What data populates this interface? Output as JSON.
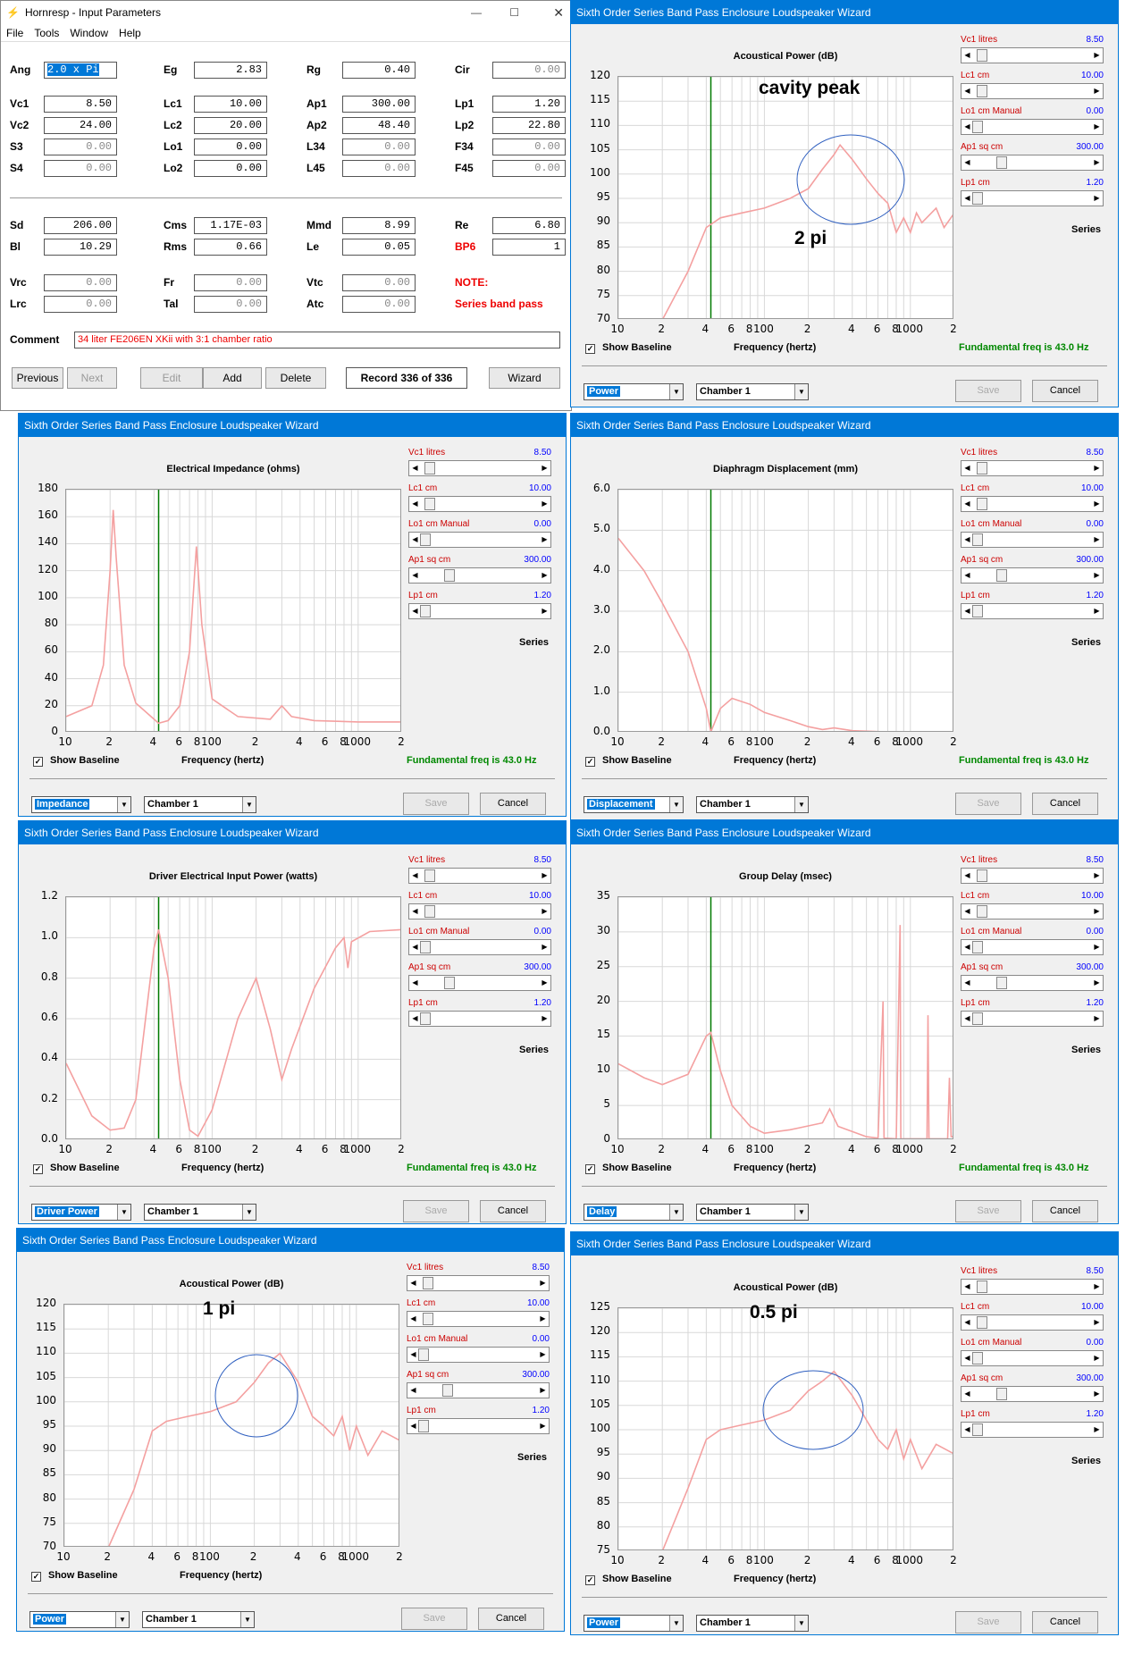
{
  "hornresp": {
    "title": "Hornresp - Input Parameters",
    "menu": [
      "File",
      "Tools",
      "Window",
      "Help"
    ],
    "params_row1": [
      {
        "label": "Ang",
        "value": "2.0 x Pi",
        "selected": true
      },
      {
        "label": "Eg",
        "value": "2.83"
      },
      {
        "label": "Rg",
        "value": "0.40"
      },
      {
        "label": "Cir",
        "value": "0.00",
        "dim": true
      }
    ],
    "params_row2": [
      {
        "label": "Vc1",
        "value": "8.50"
      },
      {
        "label": "Lc1",
        "value": "10.00"
      },
      {
        "label": "Ap1",
        "value": "300.00"
      },
      {
        "label": "Lp1",
        "value": "1.20"
      }
    ],
    "params_row3": [
      {
        "label": "Vc2",
        "value": "24.00"
      },
      {
        "label": "Lc2",
        "value": "20.00"
      },
      {
        "label": "Ap2",
        "value": "48.40"
      },
      {
        "label": "Lp2",
        "value": "22.80"
      }
    ],
    "params_row4": [
      {
        "label": "S3",
        "value": "0.00",
        "dim": true
      },
      {
        "label": "Lo1",
        "value": "0.00"
      },
      {
        "label": "L34",
        "value": "0.00",
        "dim": true
      },
      {
        "label": "F34",
        "value": "0.00",
        "dim": true
      }
    ],
    "params_row5": [
      {
        "label": "S4",
        "value": "0.00",
        "dim": true
      },
      {
        "label": "Lo2",
        "value": "0.00"
      },
      {
        "label": "L45",
        "value": "0.00",
        "dim": true
      },
      {
        "label": "F45",
        "value": "0.00",
        "dim": true
      }
    ],
    "params_row6": [
      {
        "label": "Sd",
        "value": "206.00"
      },
      {
        "label": "Cms",
        "value": "1.17E-03"
      },
      {
        "label": "Mmd",
        "value": "8.99"
      },
      {
        "label": "Re",
        "value": "6.80"
      }
    ],
    "params_row7": [
      {
        "label": "Bl",
        "value": "10.29"
      },
      {
        "label": "Rms",
        "value": "0.66"
      },
      {
        "label": "Le",
        "value": "0.05"
      },
      {
        "label": "BP6",
        "value": "1",
        "red": true
      }
    ],
    "params_row8": [
      {
        "label": "Vrc",
        "value": "0.00",
        "dim": true
      },
      {
        "label": "Fr",
        "value": "0.00",
        "dim": true
      },
      {
        "label": "Vtc",
        "value": "0.00",
        "dim": true
      }
    ],
    "params_row9": [
      {
        "label": "Lrc",
        "value": "0.00",
        "dim": true
      },
      {
        "label": "Tal",
        "value": "0.00",
        "dim": true
      },
      {
        "label": "Atc",
        "value": "0.00",
        "dim": true
      }
    ],
    "note_label": "NOTE:",
    "note_text": "Series band pass",
    "comment_label": "Comment",
    "comment_value": "34 liter FE206EN XKii with 3:1 chamber ratio",
    "buttons": {
      "previous": "Previous",
      "next": "Next",
      "edit": "Edit",
      "add": "Add",
      "delete": "Delete",
      "record": "Record 336 of 336",
      "wizard": "Wizard"
    }
  },
  "wizard_common": {
    "title": "Sixth Order Series Band Pass Enclosure Loudspeaker Wizard",
    "sliders": [
      {
        "label": "Vc1  litres",
        "value": "8.50",
        "pos": 0.04
      },
      {
        "label": "Lc1  cm",
        "value": "10.00",
        "pos": 0.04
      },
      {
        "label": "Lo1  cm  Manual",
        "value": "0.00",
        "pos": 0.0
      },
      {
        "label": "Ap1  sq cm",
        "value": "300.00",
        "pos": 0.22
      },
      {
        "label": "Lp1  cm",
        "value": "1.20",
        "pos": 0.0
      }
    ],
    "series": "Series",
    "show_baseline": "Show Baseline",
    "freq_label": "Frequency (hertz)",
    "fundamental": "Fundamental freq is 43.0 Hz",
    "chamber": "Chamber 1",
    "save": "Save",
    "cancel": "Cancel",
    "x_ticks": [
      "10",
      "2",
      "4",
      "6",
      "8",
      "100",
      "2",
      "4",
      "6",
      "8",
      "1000",
      "2"
    ],
    "colors": {
      "curve": "#f4a0a0",
      "marker": "#007a00",
      "circle": "#3060c0",
      "accent": "#0078d7"
    }
  },
  "wizards": [
    {
      "id": "w1",
      "mode": "Power",
      "chart_data": {
        "type": "line",
        "title": "Acoustical Power (dB)",
        "xlabel": "Frequency (hertz)",
        "ylim": [
          70,
          120
        ],
        "xscale": "log",
        "xlim": [
          10,
          20000
        ],
        "y_ticks": [
          "120",
          "115",
          "110",
          "105",
          "100",
          "95",
          "90",
          "85",
          "80",
          "75",
          "70"
        ],
        "marker_hz": 43,
        "points": [
          [
            20,
            70
          ],
          [
            30,
            80
          ],
          [
            40,
            89
          ],
          [
            50,
            91
          ],
          [
            70,
            92
          ],
          [
            100,
            93
          ],
          [
            150,
            95
          ],
          [
            200,
            97
          ],
          [
            250,
            101
          ],
          [
            300,
            104
          ],
          [
            330,
            106
          ],
          [
            400,
            103
          ],
          [
            500,
            99
          ],
          [
            600,
            96
          ],
          [
            700,
            94
          ],
          [
            800,
            88
          ],
          [
            900,
            91
          ],
          [
            1000,
            88
          ],
          [
            1100,
            92
          ],
          [
            1200,
            90
          ],
          [
            1500,
            93
          ],
          [
            1700,
            89
          ],
          [
            2000,
            92
          ]
        ],
        "annotations": [
          {
            "text": "cavity peak"
          },
          {
            "text": "2 pi"
          }
        ]
      }
    },
    {
      "id": "w2",
      "mode": "Impedance",
      "chart_data": {
        "type": "line",
        "title": "Electrical Impedance (ohms)",
        "xlabel": "Frequency (hertz)",
        "ylim": [
          0,
          180
        ],
        "xscale": "log",
        "xlim": [
          10,
          20000
        ],
        "y_ticks": [
          "180",
          "160",
          "140",
          "120",
          "100",
          "80",
          "60",
          "40",
          "20",
          "0"
        ],
        "marker_hz": 43,
        "points": [
          [
            10,
            12
          ],
          [
            15,
            20
          ],
          [
            18,
            50
          ],
          [
            20,
            120
          ],
          [
            21,
            165
          ],
          [
            22,
            130
          ],
          [
            25,
            50
          ],
          [
            30,
            22
          ],
          [
            40,
            10
          ],
          [
            43,
            7
          ],
          [
            50,
            9
          ],
          [
            60,
            20
          ],
          [
            70,
            60
          ],
          [
            78,
            138
          ],
          [
            85,
            80
          ],
          [
            100,
            25
          ],
          [
            150,
            12
          ],
          [
            250,
            10
          ],
          [
            300,
            20
          ],
          [
            350,
            12
          ],
          [
            500,
            9
          ],
          [
            1000,
            8
          ],
          [
            2000,
            8
          ]
        ]
      }
    },
    {
      "id": "w3",
      "mode": "Displacement",
      "chart_data": {
        "type": "line",
        "title": "Diaphragm Displacement (mm)",
        "xlabel": "Frequency (hertz)",
        "ylim": [
          0,
          6
        ],
        "xscale": "log",
        "xlim": [
          10,
          20000
        ],
        "y_ticks": [
          "6.0",
          "5.0",
          "4.0",
          "3.0",
          "2.0",
          "1.0",
          "0.0"
        ],
        "marker_hz": 43,
        "points": [
          [
            10,
            4.8
          ],
          [
            15,
            4.0
          ],
          [
            20,
            3.2
          ],
          [
            30,
            2.0
          ],
          [
            40,
            0.6
          ],
          [
            43,
            0.02
          ],
          [
            50,
            0.6
          ],
          [
            60,
            0.85
          ],
          [
            80,
            0.7
          ],
          [
            100,
            0.5
          ],
          [
            150,
            0.3
          ],
          [
            200,
            0.15
          ],
          [
            250,
            0.08
          ],
          [
            300,
            0.12
          ],
          [
            400,
            0.05
          ],
          [
            700,
            0.02
          ],
          [
            1000,
            0.01
          ],
          [
            2000,
            0.0
          ]
        ]
      }
    },
    {
      "id": "w4",
      "mode": "Driver Power",
      "chart_data": {
        "type": "line",
        "title": "Driver Electrical Input Power (watts)",
        "xlabel": "Frequency (hertz)",
        "ylim": [
          0,
          1.2
        ],
        "xscale": "log",
        "xlim": [
          10,
          20000
        ],
        "y_ticks": [
          "1.2",
          "1.0",
          "0.8",
          "0.6",
          "0.4",
          "0.2",
          "0.0"
        ],
        "marker_hz": 43,
        "points": [
          [
            10,
            0.38
          ],
          [
            15,
            0.12
          ],
          [
            20,
            0.05
          ],
          [
            25,
            0.06
          ],
          [
            30,
            0.2
          ],
          [
            35,
            0.6
          ],
          [
            40,
            0.95
          ],
          [
            43,
            1.04
          ],
          [
            50,
            0.8
          ],
          [
            60,
            0.3
          ],
          [
            70,
            0.05
          ],
          [
            80,
            0.02
          ],
          [
            100,
            0.15
          ],
          [
            150,
            0.6
          ],
          [
            200,
            0.8
          ],
          [
            250,
            0.55
          ],
          [
            300,
            0.3
          ],
          [
            350,
            0.45
          ],
          [
            500,
            0.75
          ],
          [
            700,
            0.95
          ],
          [
            800,
            1.0
          ],
          [
            850,
            0.85
          ],
          [
            900,
            0.98
          ],
          [
            1200,
            1.03
          ],
          [
            2000,
            1.04
          ]
        ]
      }
    },
    {
      "id": "w5",
      "mode": "Delay",
      "chart_data": {
        "type": "line",
        "title": "Group Delay (msec)",
        "xlabel": "Frequency (hertz)",
        "ylim": [
          0,
          35
        ],
        "xscale": "log",
        "xlim": [
          10,
          20000
        ],
        "y_ticks": [
          "35",
          "30",
          "25",
          "20",
          "15",
          "10",
          "5",
          "0"
        ],
        "marker_hz": 43,
        "points": [
          [
            10,
            11
          ],
          [
            15,
            9
          ],
          [
            20,
            8
          ],
          [
            30,
            9.5
          ],
          [
            40,
            15
          ],
          [
            43,
            15.5
          ],
          [
            50,
            10
          ],
          [
            60,
            5
          ],
          [
            80,
            2
          ],
          [
            100,
            1
          ],
          [
            150,
            1.5
          ],
          [
            250,
            2.5
          ],
          [
            280,
            4.5
          ],
          [
            320,
            2
          ],
          [
            500,
            0.5
          ],
          [
            600,
            0.3
          ],
          [
            650,
            20
          ],
          [
            660,
            0.3
          ],
          [
            800,
            0.2
          ],
          [
            850,
            31
          ],
          [
            860,
            0.2
          ],
          [
            1300,
            0.2
          ],
          [
            1320,
            18
          ],
          [
            1340,
            0.2
          ],
          [
            1800,
            0.2
          ],
          [
            1850,
            9
          ],
          [
            1900,
            0.5
          ],
          [
            2000,
            0.5
          ]
        ]
      }
    },
    {
      "id": "w6",
      "mode": "Power",
      "chart_data": {
        "type": "line",
        "title": "Acoustical Power (dB)",
        "xlabel": "Frequency (hertz)",
        "ylim": [
          70,
          120
        ],
        "xscale": "log",
        "xlim": [
          10,
          20000
        ],
        "y_ticks": [
          "120",
          "115",
          "110",
          "105",
          "100",
          "95",
          "90",
          "85",
          "80",
          "75",
          "70"
        ],
        "marker_hz": null,
        "points": [
          [
            20,
            70
          ],
          [
            30,
            82
          ],
          [
            40,
            94
          ],
          [
            50,
            96
          ],
          [
            70,
            97
          ],
          [
            100,
            98
          ],
          [
            150,
            100
          ],
          [
            200,
            104
          ],
          [
            250,
            108
          ],
          [
            300,
            110
          ],
          [
            400,
            104
          ],
          [
            500,
            97
          ],
          [
            600,
            95
          ],
          [
            700,
            93
          ],
          [
            800,
            97
          ],
          [
            900,
            90
          ],
          [
            1000,
            95
          ],
          [
            1200,
            89
          ],
          [
            1500,
            94
          ],
          [
            2000,
            92
          ]
        ],
        "annotations": [
          {
            "text": "1 pi"
          }
        ]
      }
    },
    {
      "id": "w7",
      "mode": "Power",
      "chart_data": {
        "type": "line",
        "title": "Acoustical Power (dB)",
        "xlabel": "Frequency (hertz)",
        "ylim": [
          75,
          125
        ],
        "xscale": "log",
        "xlim": [
          10,
          20000
        ],
        "y_ticks": [
          "125",
          "120",
          "115",
          "110",
          "105",
          "100",
          "95",
          "90",
          "85",
          "80",
          "75"
        ],
        "marker_hz": null,
        "points": [
          [
            20,
            75
          ],
          [
            30,
            88
          ],
          [
            40,
            98
          ],
          [
            50,
            100
          ],
          [
            70,
            101
          ],
          [
            100,
            102
          ],
          [
            150,
            104
          ],
          [
            200,
            108
          ],
          [
            250,
            110
          ],
          [
            300,
            112
          ],
          [
            400,
            107
          ],
          [
            500,
            102
          ],
          [
            600,
            98
          ],
          [
            700,
            96
          ],
          [
            800,
            100
          ],
          [
            900,
            94
          ],
          [
            1000,
            98
          ],
          [
            1200,
            92
          ],
          [
            1500,
            97
          ],
          [
            2000,
            95
          ]
        ],
        "annotations": [
          {
            "text": "0.5 pi"
          }
        ]
      }
    }
  ]
}
